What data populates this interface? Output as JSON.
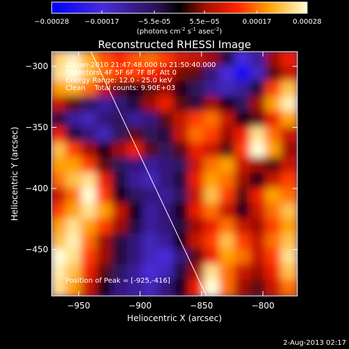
{
  "chart_data": {
    "type": "heatmap",
    "title": "Reconstructed RHESSI Image",
    "xlabel": "Heliocentric X (arcsec)",
    "ylabel": "Heliocentric Y (arcsec)",
    "xlim": [
      -972,
      -772
    ],
    "ylim": [
      -488,
      -288
    ],
    "x_ticks": [
      -950,
      -900,
      -850,
      -800
    ],
    "y_ticks": [
      -450,
      -400,
      -350,
      -300
    ],
    "colorbar": {
      "range": [
        -0.00028,
        0.00028
      ],
      "tick_labels": [
        "-0.00028",
        "-0.00017",
        "-5.5e-05",
        "5.5e-05",
        "0.00017",
        "0.00028"
      ],
      "tick_values": [
        -0.00028,
        -0.00017,
        -5.5e-05,
        5.5e-05,
        0.00017,
        0.00028
      ],
      "unit_prefix": "(photons cm",
      "unit_exp1": "-2",
      "unit_mid": " s",
      "unit_exp2": "-1",
      "unit_mid2": " asec",
      "unit_exp3": "-2",
      "unit_suffix": ")"
    },
    "annotations": [
      "20-Jan-2010 21:47:48.000 to 21:50:40.000",
      "Detectors: 4F 5F 6F 7F 8F, Att 0",
      "Energy Range: 12.0 - 25.0 keV",
      "Clean    Total counts: 9.90E+03"
    ],
    "peak_label": "Position of Peak = [-925,-416]",
    "limb_line": {
      "from": [
        -940,
        -288
      ],
      "to": [
        -846,
        -488
      ]
    },
    "intensity_grid_note": "normalized -1..1, rows top(y=-288) to bottom(y=-488), columns left to right",
    "intensity_grid": [
      [
        0.85,
        0.95,
        0.75,
        0.55,
        0.45,
        0.55,
        0.6,
        0.5,
        0.35,
        0.3,
        0.2,
        -0.1,
        -0.6,
        -0.4,
        0.2,
        0.4
      ],
      [
        0.9,
        1.0,
        0.8,
        0.6,
        0.5,
        0.5,
        0.45,
        0.35,
        0.15,
        0.1,
        -0.3,
        -0.6,
        -0.9,
        -0.5,
        0.1,
        0.3
      ],
      [
        0.7,
        0.75,
        0.6,
        0.3,
        0.1,
        0.0,
        0.1,
        0.2,
        0.0,
        -0.2,
        -0.4,
        -0.5,
        -0.4,
        -0.1,
        0.5,
        0.8
      ],
      [
        0.3,
        0.1,
        -0.2,
        -0.4,
        -0.3,
        -0.1,
        0.2,
        0.4,
        0.1,
        -0.1,
        0.2,
        0.0,
        -0.2,
        0.2,
        0.7,
        0.95
      ],
      [
        -0.1,
        -0.4,
        -0.5,
        -0.3,
        -0.2,
        -0.4,
        -0.3,
        0.1,
        0.3,
        0.5,
        0.6,
        0.3,
        0.0,
        0.1,
        0.4,
        0.7
      ],
      [
        0.4,
        -0.1,
        -0.3,
        -0.5,
        -0.2,
        0.1,
        -0.2,
        -0.1,
        0.3,
        0.6,
        0.5,
        0.2,
        0.4,
        0.9,
        0.6,
        0.3
      ],
      [
        0.8,
        0.5,
        0.2,
        0.0,
        0.2,
        0.4,
        0.1,
        -0.2,
        0.1,
        0.4,
        0.3,
        0.1,
        0.5,
        1.0,
        0.7,
        0.2
      ],
      [
        0.7,
        0.7,
        0.5,
        0.1,
        -0.2,
        -0.3,
        -0.4,
        -0.3,
        -0.2,
        0.3,
        0.6,
        0.7,
        0.3,
        0.2,
        0.1,
        0.3
      ],
      [
        0.6,
        0.8,
        0.9,
        0.4,
        -0.1,
        -0.4,
        -0.5,
        -0.3,
        -0.1,
        0.4,
        0.7,
        0.6,
        0.2,
        0.0,
        0.3,
        0.5
      ],
      [
        0.3,
        0.6,
        1.0,
        0.5,
        0.0,
        -0.2,
        -0.3,
        -0.4,
        -0.2,
        0.3,
        0.8,
        0.5,
        0.1,
        0.4,
        0.7,
        0.6
      ],
      [
        0.5,
        0.7,
        0.9,
        0.7,
        0.3,
        0.0,
        -0.4,
        -0.3,
        0.0,
        0.4,
        0.6,
        0.3,
        0.0,
        0.3,
        0.6,
        0.8
      ],
      [
        0.7,
        0.9,
        0.7,
        0.5,
        0.2,
        -0.1,
        -0.4,
        -0.3,
        -0.1,
        0.2,
        0.4,
        0.6,
        0.3,
        0.2,
        0.5,
        0.7
      ],
      [
        0.8,
        0.95,
        0.6,
        0.2,
        -0.1,
        -0.3,
        -0.5,
        -0.4,
        0.0,
        0.3,
        0.5,
        0.8,
        0.5,
        0.3,
        0.6,
        0.8
      ],
      [
        1.0,
        0.9,
        0.5,
        0.2,
        -0.1,
        -0.3,
        -0.5,
        -0.6,
        -0.3,
        0.1,
        0.4,
        0.7,
        0.6,
        0.3,
        0.5,
        0.9
      ],
      [
        0.95,
        0.8,
        0.4,
        0.1,
        -0.2,
        -0.4,
        -0.6,
        -0.5,
        -0.1,
        0.2,
        0.9,
        0.6,
        0.3,
        0.2,
        0.4,
        0.8
      ],
      [
        0.9,
        0.7,
        0.3,
        0.0,
        -0.3,
        -0.4,
        -0.5,
        -0.3,
        0.0,
        0.4,
        1.0,
        0.6,
        0.2,
        0.1,
        0.3,
        0.6
      ]
    ]
  },
  "footer": {
    "date": "2-Aug-2013 02:17"
  }
}
